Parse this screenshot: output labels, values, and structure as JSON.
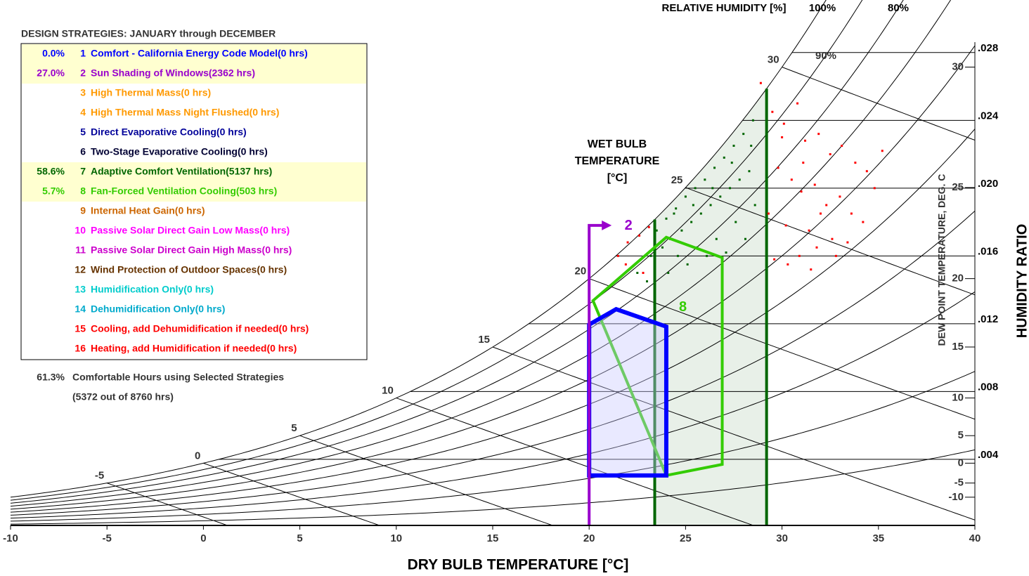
{
  "chart_data": {
    "type": "psychrometric",
    "top_label": "RELATIVE HUMIDITY [%]",
    "rh_labels": [
      {
        "value": 100,
        "label": "100%"
      },
      {
        "value": 90,
        "label": "90%"
      },
      {
        "value": 80,
        "label": "80%"
      }
    ],
    "xlabel": "DRY BULB TEMPERATURE [°C]",
    "ylabel": "HUMIDITY RATIO",
    "y2label": "DEW POINT TEMPERATURE, DEG. C",
    "wet_bulb_title": [
      "WET BULB",
      "TEMPERATURE",
      "[°C]"
    ],
    "xlim": [
      -10,
      40
    ],
    "xticks": [
      -10,
      -5,
      0,
      5,
      10,
      15,
      20,
      25,
      30,
      35,
      40
    ],
    "ylim": [
      0.0001,
      0.0311
    ],
    "yticks": [
      {
        "value": 0.004,
        "label": ".004"
      },
      {
        "value": 0.008,
        "label": ".008"
      },
      {
        "value": 0.012,
        "label": ".012"
      },
      {
        "value": 0.016,
        "label": ".016"
      },
      {
        "value": 0.02,
        "label": ".020"
      },
      {
        "value": 0.024,
        "label": ".024"
      },
      {
        "value": 0.028,
        "label": ".028"
      }
    ],
    "wet_bulb_ticks": [
      -5,
      0,
      5,
      10,
      15,
      20,
      25,
      30
    ],
    "dew_point_ticks": [
      -10,
      -5,
      0,
      5,
      10,
      15,
      20,
      25,
      30
    ],
    "legend": {
      "title": "DESIGN STRATEGIES:  JANUARY through DECEMBER",
      "items": [
        {
          "pct": "0.0%",
          "number": 1,
          "label": "Comfort - California Energy Code Model(0 hrs)",
          "color": "#0000ff"
        },
        {
          "pct": "27.0%",
          "number": 2,
          "label": "Sun Shading of Windows(2362 hrs)",
          "color": "#9900cc"
        },
        {
          "pct": null,
          "number": 3,
          "label": "High Thermal Mass(0 hrs)",
          "color": "#ff9900"
        },
        {
          "pct": null,
          "number": 4,
          "label": "High Thermal Mass Night Flushed(0 hrs)",
          "color": "#ff9900"
        },
        {
          "pct": null,
          "number": 5,
          "label": "Direct Evaporative Cooling(0 hrs)",
          "color": "#000099"
        },
        {
          "pct": null,
          "number": 6,
          "label": "Two-Stage Evaporative Cooling(0 hrs)",
          "color": "#000033"
        },
        {
          "pct": "58.6%",
          "number": 7,
          "label": "Adaptive Comfort Ventilation(5137 hrs)",
          "color": "#006600"
        },
        {
          "pct": "5.7%",
          "number": 8,
          "label": "Fan-Forced Ventilation Cooling(503 hrs)",
          "color": "#33cc00"
        },
        {
          "pct": null,
          "number": 9,
          "label": "Internal Heat Gain(0 hrs)",
          "color": "#cc6600"
        },
        {
          "pct": null,
          "number": 10,
          "label": "Passive Solar Direct Gain Low Mass(0 hrs)",
          "color": "#ff00ff"
        },
        {
          "pct": null,
          "number": 11,
          "label": "Passive Solar Direct Gain High Mass(0 hrs)",
          "color": "#cc00cc"
        },
        {
          "pct": null,
          "number": 12,
          "label": "Wind Protection of Outdoor Spaces(0 hrs)",
          "color": "#663300"
        },
        {
          "pct": null,
          "number": 13,
          "label": "Humidification Only(0 hrs)",
          "color": "#00cccc"
        },
        {
          "pct": null,
          "number": 14,
          "label": "Dehumidification Only(0 hrs)",
          "color": "#00aacc"
        },
        {
          "pct": null,
          "number": 15,
          "label": "Cooling, add Dehumidification if needed(0 hrs)",
          "color": "#ff0000"
        },
        {
          "pct": null,
          "number": 16,
          "label": "Heating, add Humidification if needed(0 hrs)",
          "color": "#ff0000"
        }
      ]
    },
    "summary": {
      "pct": "61.3%",
      "text": "Comfortable Hours using Selected Strategies",
      "detail": "(5372 out of 8760 hrs)"
    },
    "adaptive_zone": {
      "x_range": [
        23.4,
        29.2
      ],
      "color": "#006600"
    },
    "comfort_zone": {
      "color": "#0000ff",
      "x": [
        20.0,
        24.0,
        24.0,
        21.4,
        20.0
      ],
      "y": [
        0.00305,
        0.00305,
        0.01183,
        0.01286,
        0.01195
      ]
    },
    "fan_zone": {
      "label": "8",
      "color": "#33cc00",
      "x": [
        24.0,
        26.9,
        26.9,
        24.0,
        20.2
      ],
      "y": [
        0.00305,
        0.0037,
        0.0159,
        0.0171,
        0.01336
      ]
    },
    "shading": {
      "label": "2",
      "color": "#9900cc",
      "x": 20.0,
      "y": 0.0178
    },
    "series": [
      {
        "color": "#ff0000",
        "x": [
          29.5,
          30.1,
          30.8,
          31.2,
          31.9,
          32.5,
          33.1,
          33.8,
          34.4,
          35.2,
          29.8,
          30.5,
          31.0,
          31.7,
          32.3,
          33.0,
          33.6,
          34.2,
          29.3,
          30.2,
          31.4,
          32.6,
          33.4,
          30.9,
          31.8,
          29.6,
          30.3,
          31.5,
          32.8,
          28.9,
          21.5,
          22.0,
          22.6,
          23.1,
          21.9,
          22.8,
          30.0,
          31.1,
          32.0,
          34.8
        ],
        "values": [
          0.0245,
          0.0238,
          0.025,
          0.0228,
          0.0232,
          0.022,
          0.0225,
          0.0215,
          0.021,
          0.0222,
          0.0212,
          0.0205,
          0.0198,
          0.0202,
          0.019,
          0.0195,
          0.0185,
          0.018,
          0.0185,
          0.0178,
          0.0175,
          0.017,
          0.0168,
          0.016,
          0.0165,
          0.0158,
          0.0155,
          0.0152,
          0.016,
          0.0262,
          0.016,
          0.0168,
          0.0172,
          0.0177,
          0.0155,
          0.015,
          0.023,
          0.0215,
          0.0185,
          0.02
        ]
      },
      {
        "color": "#006600",
        "x": [
          23.5,
          24.0,
          24.5,
          25.0,
          25.5,
          26.0,
          26.5,
          27.0,
          27.5,
          28.0,
          28.5,
          24.2,
          24.8,
          25.3,
          25.8,
          26.3,
          26.8,
          27.3,
          27.8,
          28.3,
          23.8,
          24.6,
          25.6,
          26.6,
          27.6,
          28.6,
          22.5,
          23.0,
          23.4,
          24.1,
          25.1,
          26.1,
          27.1,
          28.1,
          24.4,
          25.4,
          26.4,
          27.4,
          28.4,
          23.2
        ],
        "values": [
          0.0175,
          0.0182,
          0.0188,
          0.0195,
          0.02,
          0.0205,
          0.0212,
          0.0218,
          0.0225,
          0.0232,
          0.024,
          0.017,
          0.0175,
          0.018,
          0.0185,
          0.019,
          0.0195,
          0.02,
          0.0205,
          0.021,
          0.0165,
          0.016,
          0.0165,
          0.017,
          0.018,
          0.019,
          0.015,
          0.0145,
          0.014,
          0.015,
          0.0155,
          0.016,
          0.0162,
          0.017,
          0.0185,
          0.019,
          0.02,
          0.0215,
          0.0225,
          0.016
        ]
      }
    ]
  }
}
